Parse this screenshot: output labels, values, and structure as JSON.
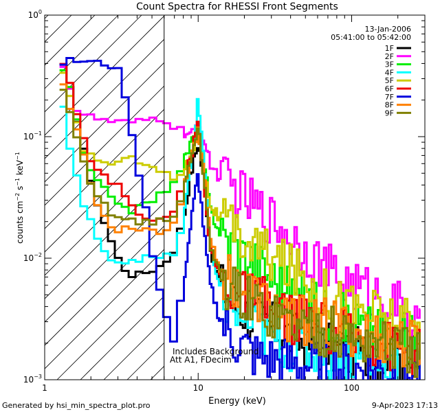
{
  "chart_data": {
    "type": "line",
    "title": "Count Spectra for RHESSI Front Segments",
    "xlabel": "Energy (keV)",
    "ylabel": "counts cm^-2 s^-1 keV^-1",
    "ylabel_parts": {
      "base": "counts cm",
      "exp1": "−2",
      "mid": " s",
      "exp2": "−1",
      "end": " keV",
      "exp3": "−1"
    },
    "xscale": "log",
    "yscale": "log",
    "xlim": [
      1,
      300
    ],
    "ylim": [
      0.001,
      1
    ],
    "x_ticks": [
      {
        "value": 1,
        "label": "1"
      },
      {
        "value": 10,
        "label": "10"
      },
      {
        "value": 100,
        "label": "100"
      }
    ],
    "y_ticks": [
      {
        "value": 0.001,
        "base": "10",
        "exp": "−3"
      },
      {
        "value": 0.01,
        "base": "10",
        "exp": "−2"
      },
      {
        "value": 0.1,
        "base": "10",
        "exp": "−1"
      },
      {
        "value": 1,
        "base": "10",
        "exp": "0"
      }
    ],
    "date": "13-Jan-2006",
    "time_range": "05:41:00 to 05:42:00",
    "annotation_line1": "Includes Background",
    "annotation_line2": "Att A1, FDecim",
    "attenuator_edge_keV": 6,
    "hatched_region_keV": [
      1,
      6
    ],
    "series": [
      {
        "name": "1F",
        "color": "#000000",
        "points": [
          [
            1.25,
            0.45
          ],
          [
            1.4,
            0.3
          ],
          [
            1.6,
            0.15
          ],
          [
            1.8,
            0.08
          ],
          [
            2.0,
            0.04
          ],
          [
            2.3,
            0.025
          ],
          [
            2.6,
            0.016
          ],
          [
            3.0,
            0.01
          ],
          [
            3.5,
            0.0075
          ],
          [
            4.0,
            0.0072
          ],
          [
            5.0,
            0.008
          ],
          [
            6.0,
            0.009
          ],
          [
            7.0,
            0.012
          ],
          [
            8.0,
            0.02
          ],
          [
            9.0,
            0.05
          ],
          [
            10,
            0.09
          ],
          [
            11,
            0.04
          ],
          [
            12,
            0.012
          ],
          [
            14,
            0.006
          ],
          [
            18,
            0.004
          ],
          [
            25,
            0.003
          ],
          [
            35,
            0.0025
          ],
          [
            50,
            0.002
          ],
          [
            70,
            0.0018
          ],
          [
            100,
            0.0017
          ],
          [
            150,
            0.0016
          ],
          [
            200,
            0.0015
          ],
          [
            280,
            0.0014
          ]
        ]
      },
      {
        "name": "2F",
        "color": "#ff00ff",
        "points": [
          [
            1.25,
            0.5
          ],
          [
            1.4,
            0.3
          ],
          [
            1.6,
            0.17
          ],
          [
            1.8,
            0.15
          ],
          [
            2.2,
            0.14
          ],
          [
            3.0,
            0.13
          ],
          [
            4.0,
            0.13
          ],
          [
            5.0,
            0.14
          ],
          [
            6.0,
            0.14
          ],
          [
            7.0,
            0.12
          ],
          [
            8.0,
            0.11
          ],
          [
            9.0,
            0.1
          ],
          [
            10,
            0.13
          ],
          [
            11,
            0.09
          ],
          [
            12,
            0.06
          ],
          [
            14,
            0.045
          ],
          [
            18,
            0.035
          ],
          [
            25,
            0.025
          ],
          [
            35,
            0.018
          ],
          [
            50,
            0.012
          ],
          [
            70,
            0.008
          ],
          [
            100,
            0.006
          ],
          [
            150,
            0.005
          ],
          [
            200,
            0.004
          ],
          [
            280,
            0.0025
          ]
        ]
      },
      {
        "name": "3F",
        "color": "#00ee00",
        "points": [
          [
            1.25,
            0.42
          ],
          [
            1.4,
            0.3
          ],
          [
            1.6,
            0.15
          ],
          [
            1.8,
            0.07
          ],
          [
            2.0,
            0.05
          ],
          [
            2.5,
            0.035
          ],
          [
            3.0,
            0.03
          ],
          [
            3.5,
            0.025
          ],
          [
            4.0,
            0.025
          ],
          [
            5.0,
            0.03
          ],
          [
            6.0,
            0.035
          ],
          [
            7.0,
            0.045
          ],
          [
            8.0,
            0.06
          ],
          [
            9.0,
            0.09
          ],
          [
            10,
            0.12
          ],
          [
            11,
            0.06
          ],
          [
            12,
            0.025
          ],
          [
            14,
            0.016
          ],
          [
            18,
            0.012
          ],
          [
            25,
            0.009
          ],
          [
            35,
            0.006
          ],
          [
            50,
            0.0045
          ],
          [
            70,
            0.0035
          ],
          [
            100,
            0.003
          ],
          [
            150,
            0.0025
          ],
          [
            200,
            0.0022
          ],
          [
            280,
            0.002
          ]
        ]
      },
      {
        "name": "4F",
        "color": "#00ffff",
        "points": [
          [
            1.25,
            0.28
          ],
          [
            1.4,
            0.1
          ],
          [
            1.6,
            0.05
          ],
          [
            1.8,
            0.025
          ],
          [
            2.0,
            0.02
          ],
          [
            2.3,
            0.014
          ],
          [
            2.6,
            0.01
          ],
          [
            3.0,
            0.0095
          ],
          [
            3.5,
            0.0095
          ],
          [
            4.0,
            0.01
          ],
          [
            5.0,
            0.01
          ],
          [
            6.0,
            0.01
          ],
          [
            7.0,
            0.011
          ],
          [
            8.0,
            0.02
          ],
          [
            9.0,
            0.06
          ],
          [
            10,
            0.2
          ],
          [
            11,
            0.06
          ],
          [
            12,
            0.012
          ],
          [
            14,
            0.005
          ],
          [
            18,
            0.0035
          ],
          [
            25,
            0.0025
          ],
          [
            35,
            0.002
          ],
          [
            50,
            0.0018
          ],
          [
            70,
            0.0016
          ],
          [
            100,
            0.0015
          ],
          [
            150,
            0.0014
          ],
          [
            200,
            0.0013
          ]
        ]
      },
      {
        "name": "5F",
        "color": "#cccc00",
        "points": [
          [
            1.25,
            0.4
          ],
          [
            1.4,
            0.25
          ],
          [
            1.6,
            0.13
          ],
          [
            1.8,
            0.08
          ],
          [
            2.0,
            0.07
          ],
          [
            2.5,
            0.06
          ],
          [
            3.0,
            0.062
          ],
          [
            3.5,
            0.065
          ],
          [
            4.0,
            0.065
          ],
          [
            5.0,
            0.06
          ],
          [
            6.0,
            0.05
          ],
          [
            7.0,
            0.045
          ],
          [
            8.0,
            0.05
          ],
          [
            9.0,
            0.07
          ],
          [
            10,
            0.11
          ],
          [
            11,
            0.05
          ],
          [
            12,
            0.028
          ],
          [
            14,
            0.02
          ],
          [
            18,
            0.015
          ],
          [
            25,
            0.012
          ],
          [
            35,
            0.009
          ],
          [
            50,
            0.007
          ],
          [
            70,
            0.005
          ],
          [
            100,
            0.004
          ],
          [
            150,
            0.0035
          ],
          [
            200,
            0.003
          ],
          [
            280,
            0.0025
          ]
        ]
      },
      {
        "name": "6F",
        "color": "#ee0000",
        "points": [
          [
            1.25,
            0.5
          ],
          [
            1.4,
            0.35
          ],
          [
            1.6,
            0.17
          ],
          [
            1.8,
            0.1
          ],
          [
            2.0,
            0.06
          ],
          [
            2.5,
            0.045
          ],
          [
            3.0,
            0.04
          ],
          [
            3.5,
            0.03
          ],
          [
            4.0,
            0.025
          ],
          [
            5.0,
            0.02
          ],
          [
            6.0,
            0.02
          ],
          [
            7.0,
            0.025
          ],
          [
            8.0,
            0.04
          ],
          [
            9.0,
            0.07
          ],
          [
            10,
            0.13
          ],
          [
            11,
            0.04
          ],
          [
            12,
            0.012
          ],
          [
            14,
            0.007
          ],
          [
            18,
            0.005
          ],
          [
            25,
            0.0045
          ],
          [
            35,
            0.0035
          ],
          [
            50,
            0.003
          ],
          [
            70,
            0.0025
          ],
          [
            100,
            0.0022
          ],
          [
            150,
            0.002
          ],
          [
            200,
            0.0018
          ],
          [
            280,
            0.0016
          ]
        ]
      },
      {
        "name": "7F",
        "color": "#0000dd",
        "points": [
          [
            1.25,
            0.4
          ],
          [
            1.5,
            0.42
          ],
          [
            1.8,
            0.42
          ],
          [
            2.2,
            0.4
          ],
          [
            2.6,
            0.4
          ],
          [
            3.0,
            0.35
          ],
          [
            3.3,
            0.25
          ],
          [
            3.6,
            0.12
          ],
          [
            4.0,
            0.06
          ],
          [
            4.5,
            0.03
          ],
          [
            5.0,
            0.012
          ],
          [
            5.5,
            0.006
          ],
          [
            6.0,
            0.004
          ],
          [
            6.5,
            0.0025
          ],
          [
            7.0,
            0.002
          ],
          [
            8.0,
            0.006
          ],
          [
            9.0,
            0.02
          ],
          [
            10,
            0.05
          ],
          [
            11,
            0.015
          ],
          [
            12,
            0.006
          ],
          [
            14,
            0.003
          ],
          [
            18,
            0.002
          ],
          [
            25,
            0.0015
          ],
          [
            35,
            0.0014
          ],
          [
            50,
            0.0013
          ],
          [
            70,
            0.0013
          ],
          [
            100,
            0.0012
          ],
          [
            150,
            0.0012
          ],
          [
            200,
            0.0011
          ],
          [
            280,
            0.0011
          ]
        ]
      },
      {
        "name": "8F",
        "color": "#ff8000",
        "points": [
          [
            1.25,
            0.35
          ],
          [
            1.4,
            0.2
          ],
          [
            1.6,
            0.12
          ],
          [
            1.8,
            0.07
          ],
          [
            2.0,
            0.04
          ],
          [
            2.3,
            0.025
          ],
          [
            2.6,
            0.02
          ],
          [
            3.0,
            0.017
          ],
          [
            3.5,
            0.018
          ],
          [
            4.0,
            0.018
          ],
          [
            5.0,
            0.017
          ],
          [
            6.0,
            0.016
          ],
          [
            7.0,
            0.02
          ],
          [
            8.0,
            0.035
          ],
          [
            9.0,
            0.07
          ],
          [
            10,
            0.12
          ],
          [
            11,
            0.045
          ],
          [
            12,
            0.015
          ],
          [
            14,
            0.008
          ],
          [
            18,
            0.006
          ],
          [
            25,
            0.0045
          ],
          [
            35,
            0.0035
          ],
          [
            50,
            0.003
          ],
          [
            70,
            0.0028
          ],
          [
            100,
            0.0025
          ],
          [
            150,
            0.0022
          ],
          [
            200,
            0.002
          ],
          [
            280,
            0.0018
          ]
        ]
      },
      {
        "name": "9F",
        "color": "#808000",
        "points": [
          [
            1.25,
            0.3
          ],
          [
            1.4,
            0.18
          ],
          [
            1.6,
            0.1
          ],
          [
            1.8,
            0.06
          ],
          [
            2.0,
            0.04
          ],
          [
            2.3,
            0.03
          ],
          [
            2.6,
            0.025
          ],
          [
            3.0,
            0.022
          ],
          [
            3.5,
            0.021
          ],
          [
            4.0,
            0.02
          ],
          [
            5.0,
            0.02
          ],
          [
            6.0,
            0.02
          ],
          [
            7.0,
            0.022
          ],
          [
            8.0,
            0.035
          ],
          [
            9.0,
            0.07
          ],
          [
            10,
            0.12
          ],
          [
            11,
            0.04
          ],
          [
            12,
            0.013
          ],
          [
            14,
            0.007
          ],
          [
            18,
            0.005
          ],
          [
            25,
            0.004
          ],
          [
            35,
            0.0032
          ],
          [
            50,
            0.0028
          ],
          [
            70,
            0.0025
          ],
          [
            100,
            0.0022
          ],
          [
            150,
            0.002
          ],
          [
            200,
            0.0018
          ],
          [
            280,
            0.0016
          ]
        ]
      }
    ]
  },
  "footer": {
    "generator": "Generated by hsi_min_spectra_plot.pro",
    "timestamp": "9-Apr-2023 17:13"
  }
}
